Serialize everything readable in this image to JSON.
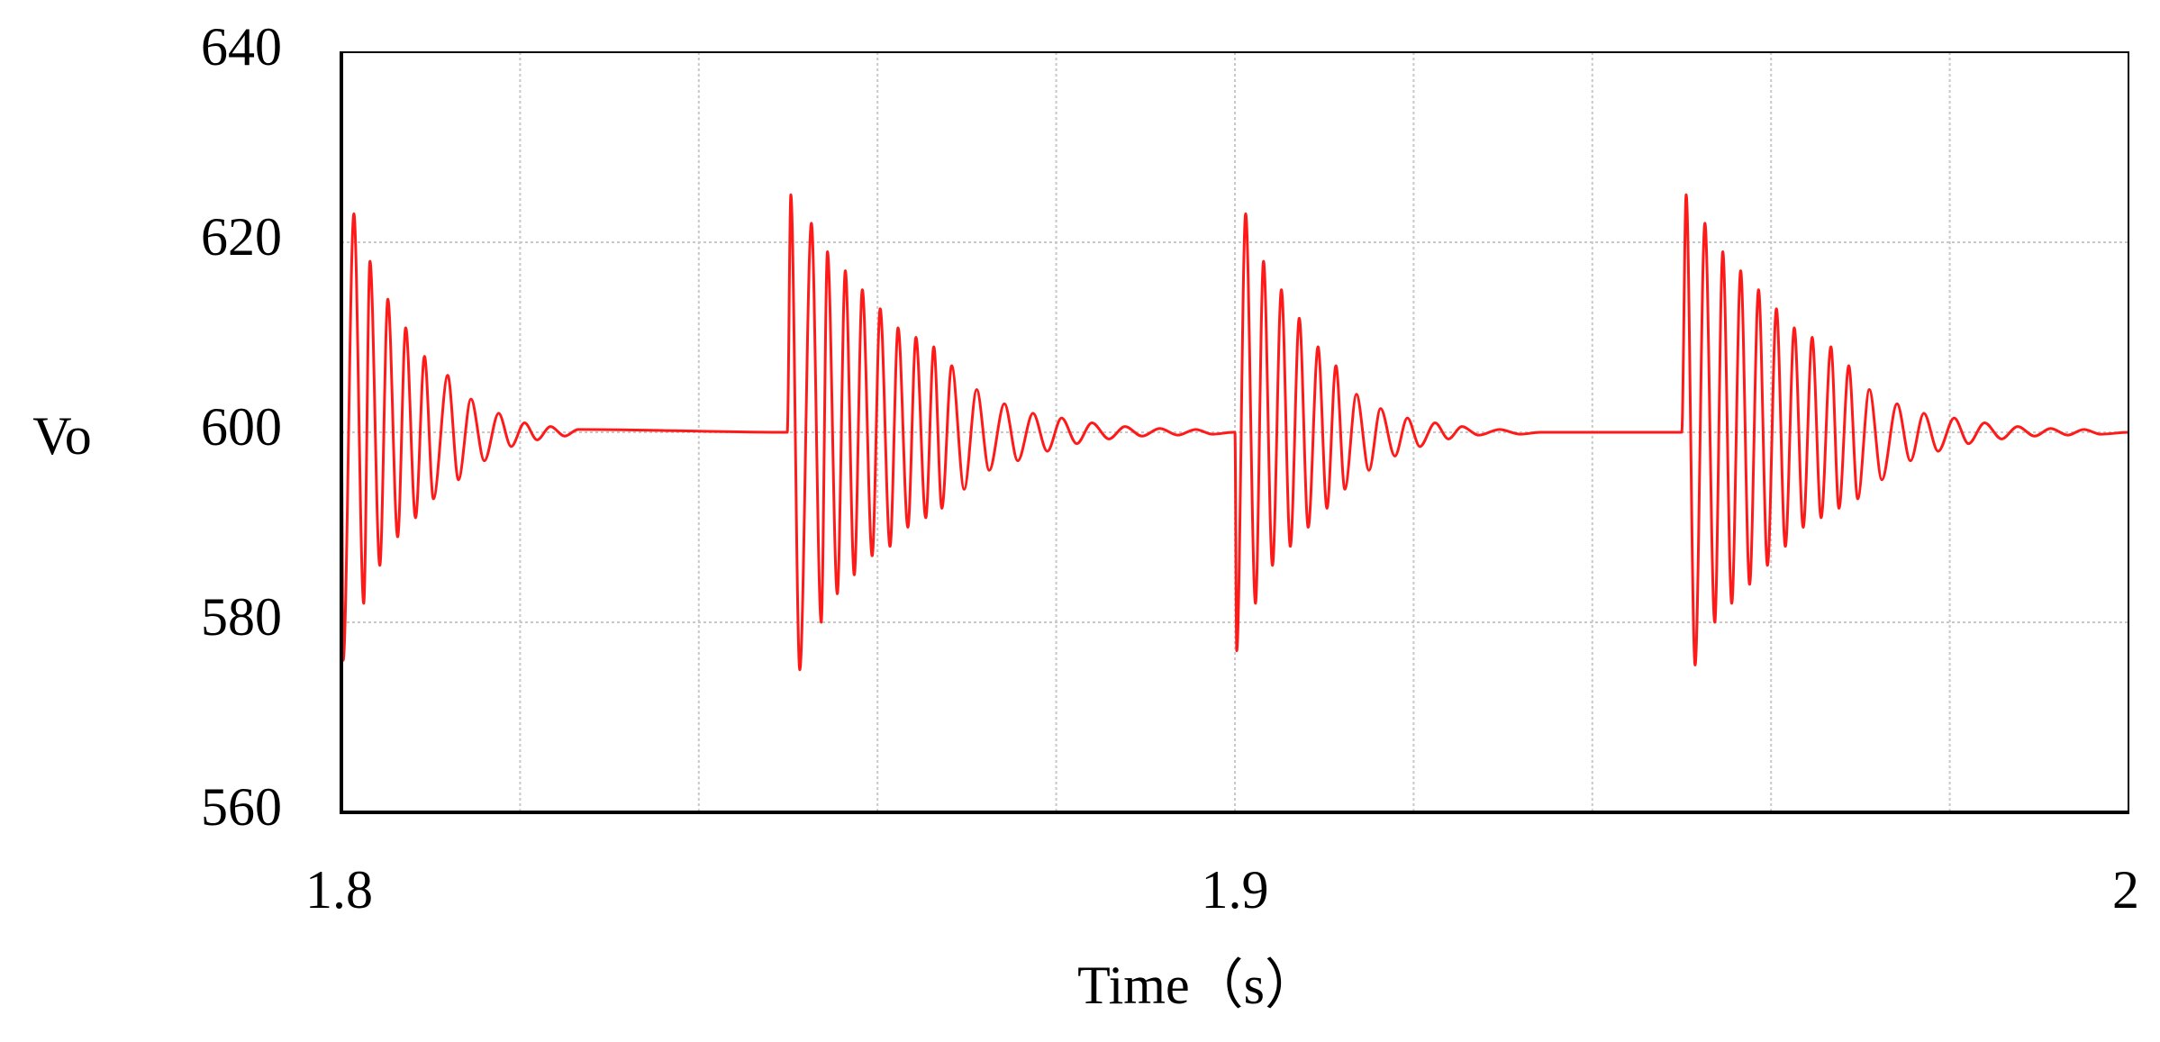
{
  "chart_data": {
    "type": "line",
    "xlabel": "Time（s）",
    "ylabel": "Vo",
    "xlim": [
      1.8,
      2
    ],
    "ylim": [
      560,
      640
    ],
    "xticks": [
      1.8,
      1.9,
      2
    ],
    "xgrid": [
      1.82,
      1.84,
      1.86,
      1.88,
      1.92,
      1.94,
      1.96,
      1.98
    ],
    "yticks": [
      560,
      580,
      600,
      620,
      640
    ],
    "grid": true,
    "series": [
      {
        "color": "#ff1a1a",
        "x": [
          1.8,
          1.8002,
          1.8014,
          1.8025,
          1.8032,
          1.8043,
          1.8052,
          1.8063,
          1.8072,
          1.8083,
          1.8093,
          1.8103,
          1.8119,
          1.8131,
          1.8145,
          1.816,
          1.8176,
          1.819,
          1.8205,
          1.8219,
          1.8234,
          1.825,
          1.8265,
          1.8499,
          1.8503,
          1.8513,
          1.8526,
          1.8537,
          1.8544,
          1.8555,
          1.8564,
          1.8574,
          1.8583,
          1.8594,
          1.8603,
          1.8614,
          1.8623,
          1.8634,
          1.8643,
          1.8654,
          1.8663,
          1.8672,
          1.8683,
          1.8697,
          1.8711,
          1.8725,
          1.8742,
          1.8757,
          1.8774,
          1.879,
          1.8806,
          1.8823,
          1.884,
          1.8859,
          1.8877,
          1.8896,
          1.8916,
          1.8936,
          1.8956,
          1.8975,
          1.8998,
          1.9,
          1.9002,
          1.9012,
          1.9023,
          1.9032,
          1.9042,
          1.9052,
          1.9062,
          1.9072,
          1.9082,
          1.9093,
          1.9103,
          1.9113,
          1.9123,
          1.9136,
          1.915,
          1.9163,
          1.9179,
          1.9193,
          1.9207,
          1.9224,
          1.9239,
          1.9254,
          1.9273,
          1.9296,
          1.9319,
          1.9342,
          1.95,
          1.9505,
          1.9515,
          1.9526,
          1.9537,
          1.9546,
          1.9556,
          1.9566,
          1.9576,
          1.9586,
          1.9596,
          1.9606,
          1.9616,
          1.9626,
          1.9636,
          1.9646,
          1.9656,
          1.9667,
          1.9676,
          1.9687,
          1.9697,
          1.971,
          1.9724,
          1.9741,
          1.9756,
          1.9771,
          1.9787,
          1.9805,
          1.9821,
          1.9839,
          1.9858,
          1.9876,
          1.9895,
          1.9913,
          1.9932,
          1.995,
          1.9969,
          2
        ],
        "values": [
          600,
          576,
          623,
          582,
          618,
          586,
          614,
          589,
          611,
          591,
          608,
          593,
          606,
          595,
          603.5,
          597,
          602,
          598.5,
          601,
          599.2,
          600.6,
          599.6,
          600.3,
          600,
          625,
          575,
          622,
          580,
          619,
          583,
          617,
          585,
          615,
          587,
          613,
          588,
          611,
          590,
          610,
          591,
          609,
          592,
          607,
          594,
          604.5,
          596,
          603,
          597,
          602,
          598,
          601.5,
          598.8,
          601,
          599.3,
          600.6,
          599.6,
          600.4,
          599.7,
          600.3,
          599.8,
          600,
          600,
          577,
          623,
          582,
          618,
          586,
          615,
          588,
          612,
          590,
          609,
          592,
          607,
          594,
          604,
          596,
          602.5,
          597.5,
          601.5,
          598.5,
          601,
          599.3,
          600.6,
          599.7,
          600.3,
          599.8,
          600,
          600,
          625,
          575.5,
          622,
          580,
          619,
          582,
          617,
          584,
          615,
          586,
          613,
          588,
          611,
          590,
          610,
          591,
          609,
          592,
          607,
          593,
          604.5,
          595,
          603,
          597,
          602,
          598,
          601.5,
          598.8,
          601,
          599.3,
          600.6,
          599.6,
          600.4,
          599.7,
          600.3,
          599.8,
          600
        ]
      }
    ]
  }
}
